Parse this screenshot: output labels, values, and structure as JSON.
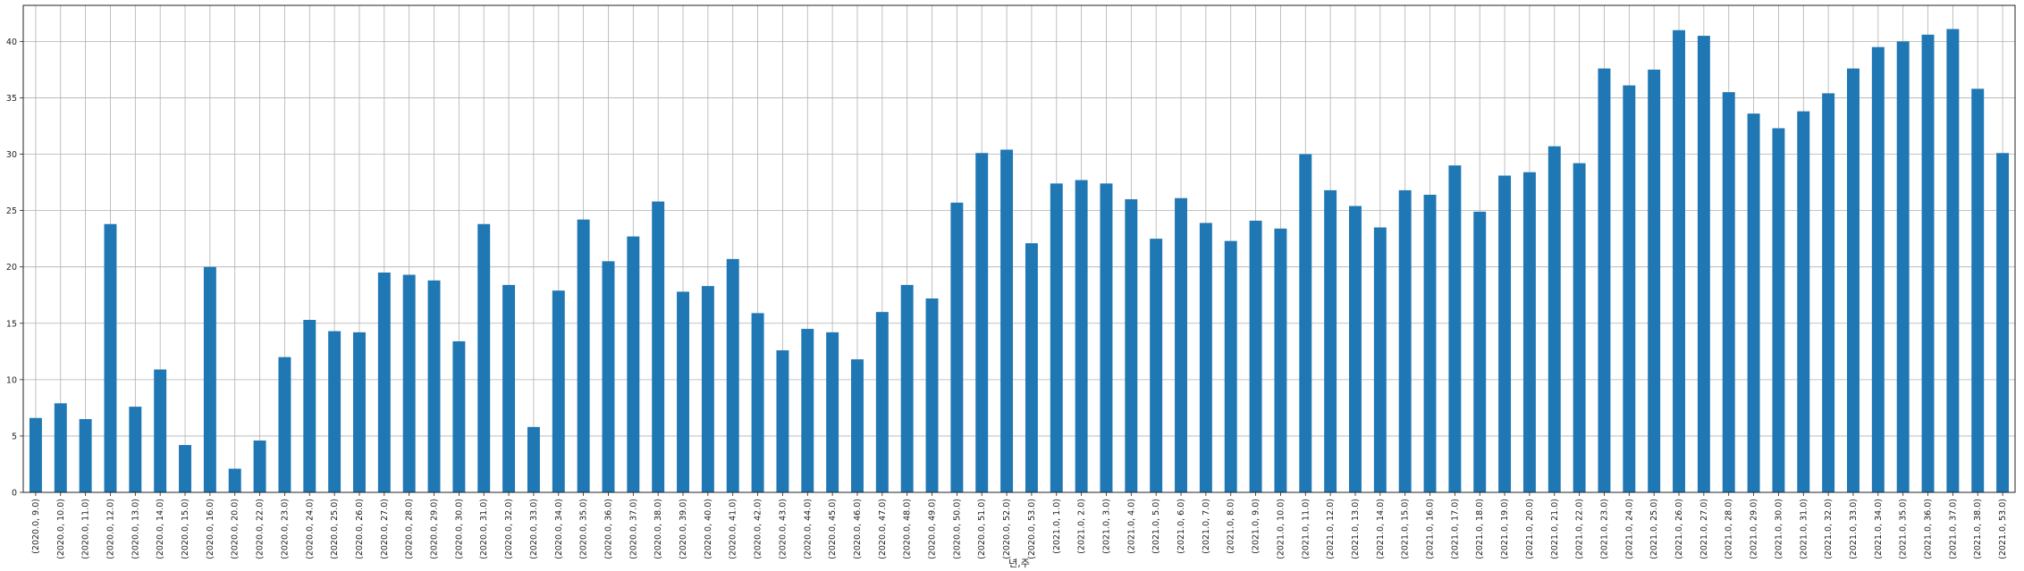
{
  "chart_data": {
    "type": "bar",
    "title": "",
    "xlabel": "년,주",
    "ylabel": "",
    "ylim": [
      0,
      43.2
    ],
    "yticks": [
      0,
      5,
      10,
      15,
      20,
      25,
      30,
      35,
      40
    ],
    "grid": true,
    "legend": "none",
    "bar_color": "#1f77b4",
    "categories": [
      "(2020.0, 9.0)",
      "(2020.0, 10.0)",
      "(2020.0, 11.0)",
      "(2020.0, 12.0)",
      "(2020.0, 13.0)",
      "(2020.0, 14.0)",
      "(2020.0, 15.0)",
      "(2020.0, 16.0)",
      "(2020.0, 20.0)",
      "(2020.0, 22.0)",
      "(2020.0, 23.0)",
      "(2020.0, 24.0)",
      "(2020.0, 25.0)",
      "(2020.0, 26.0)",
      "(2020.0, 27.0)",
      "(2020.0, 28.0)",
      "(2020.0, 29.0)",
      "(2020.0, 30.0)",
      "(2020.0, 31.0)",
      "(2020.0, 32.0)",
      "(2020.0, 33.0)",
      "(2020.0, 34.0)",
      "(2020.0, 35.0)",
      "(2020.0, 36.0)",
      "(2020.0, 37.0)",
      "(2020.0, 38.0)",
      "(2020.0, 39.0)",
      "(2020.0, 40.0)",
      "(2020.0, 41.0)",
      "(2020.0, 42.0)",
      "(2020.0, 43.0)",
      "(2020.0, 44.0)",
      "(2020.0, 45.0)",
      "(2020.0, 46.0)",
      "(2020.0, 47.0)",
      "(2020.0, 48.0)",
      "(2020.0, 49.0)",
      "(2020.0, 50.0)",
      "(2020.0, 51.0)",
      "(2020.0, 52.0)",
      "(2020.0, 53.0)",
      "(2021.0, 1.0)",
      "(2021.0, 2.0)",
      "(2021.0, 3.0)",
      "(2021.0, 4.0)",
      "(2021.0, 5.0)",
      "(2021.0, 6.0)",
      "(2021.0, 7.0)",
      "(2021.0, 8.0)",
      "(2021.0, 9.0)",
      "(2021.0, 10.0)",
      "(2021.0, 11.0)",
      "(2021.0, 12.0)",
      "(2021.0, 13.0)",
      "(2021.0, 14.0)",
      "(2021.0, 15.0)",
      "(2021.0, 16.0)",
      "(2021.0, 17.0)",
      "(2021.0, 18.0)",
      "(2021.0, 19.0)",
      "(2021.0, 20.0)",
      "(2021.0, 21.0)",
      "(2021.0, 22.0)",
      "(2021.0, 23.0)",
      "(2021.0, 24.0)",
      "(2021.0, 25.0)",
      "(2021.0, 26.0)",
      "(2021.0, 27.0)",
      "(2021.0, 28.0)",
      "(2021.0, 29.0)",
      "(2021.0, 30.0)",
      "(2021.0, 31.0)",
      "(2021.0, 32.0)",
      "(2021.0, 33.0)",
      "(2021.0, 34.0)",
      "(2021.0, 35.0)",
      "(2021.0, 36.0)",
      "(2021.0, 37.0)",
      "(2021.0, 38.0)",
      "(2021.0, 53.0)"
    ],
    "values": [
      6.6,
      7.9,
      6.5,
      23.8,
      7.6,
      10.9,
      4.2,
      20.0,
      2.1,
      4.6,
      12.0,
      15.3,
      14.3,
      14.2,
      19.5,
      19.3,
      18.8,
      13.4,
      23.8,
      18.4,
      5.8,
      17.9,
      24.2,
      20.5,
      22.7,
      25.8,
      17.8,
      18.3,
      20.7,
      15.9,
      12.6,
      14.5,
      14.2,
      11.8,
      16.0,
      18.4,
      17.2,
      25.7,
      30.1,
      30.4,
      22.1,
      27.4,
      27.7,
      27.4,
      26.0,
      22.5,
      26.1,
      23.9,
      22.3,
      24.1,
      23.4,
      30.0,
      26.8,
      25.4,
      23.5,
      26.8,
      26.4,
      29.0,
      24.9,
      28.1,
      28.4,
      30.7,
      29.2,
      37.6,
      36.1,
      37.5,
      41.0,
      40.5,
      35.5,
      33.6,
      32.3,
      33.8,
      35.4,
      37.6,
      39.5,
      40.0,
      40.6,
      41.1,
      35.8,
      30.1
    ]
  }
}
